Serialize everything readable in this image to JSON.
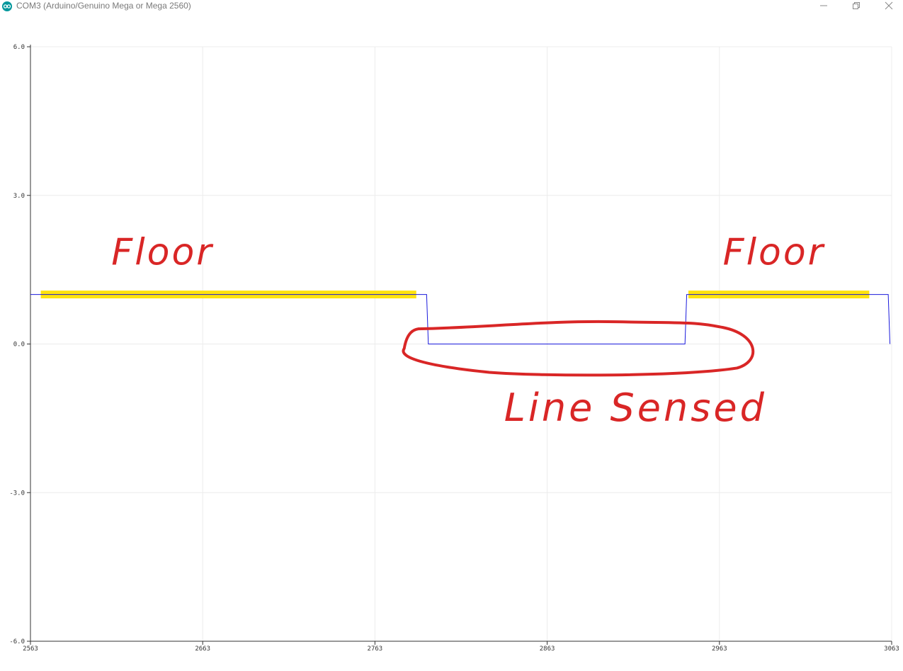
{
  "window": {
    "title": "COM3 (Arduino/Genuino Mega or Mega 2560)",
    "icon": "arduino-infinity-icon",
    "controls": [
      "minimize-icon",
      "restore-icon",
      "close-icon"
    ]
  },
  "colors": {
    "series": "#1a1adc",
    "grid": "#ececec",
    "axis": "#333333",
    "highlight": "#ffe100",
    "annotation": "#d92626"
  },
  "chart_data": {
    "type": "line",
    "title": "",
    "xlabel": "",
    "ylabel": "",
    "xlim": [
      2563,
      3063
    ],
    "ylim": [
      -6,
      6
    ],
    "x_ticks": [
      2563,
      2663,
      2763,
      2863,
      2963,
      3063
    ],
    "x_tick_labels": [
      "2563",
      "2663",
      "2763",
      "2863",
      "2963",
      "3063"
    ],
    "y_ticks": [
      6,
      3,
      0,
      -3,
      -6
    ],
    "y_tick_labels": [
      "6.0",
      "3.0",
      "0.0",
      "-3.0",
      "-6.0"
    ],
    "grid": true,
    "series": [
      {
        "color": "#1a1adc",
        "x": [
          2563,
          2793,
          2794,
          2943,
          2944,
          3061,
          3062
        ],
        "y": [
          1,
          1,
          0,
          0,
          1,
          1,
          0
        ]
      }
    ],
    "annotations": [
      {
        "text": "Floor",
        "x": 2610,
        "y": 1.6
      },
      {
        "text": "Floor",
        "x": 2965,
        "y": 1.6
      },
      {
        "text": "Line Sensed",
        "x": 2838,
        "y": -1.55
      }
    ],
    "highlights": [
      {
        "x": [
          2569,
          2787
        ],
        "y": 1
      },
      {
        "x": [
          2945,
          3050
        ],
        "y": 1
      }
    ],
    "circled_region": {
      "x": [
        2780,
        2965
      ],
      "y": [
        -0.6,
        0.42
      ]
    }
  }
}
